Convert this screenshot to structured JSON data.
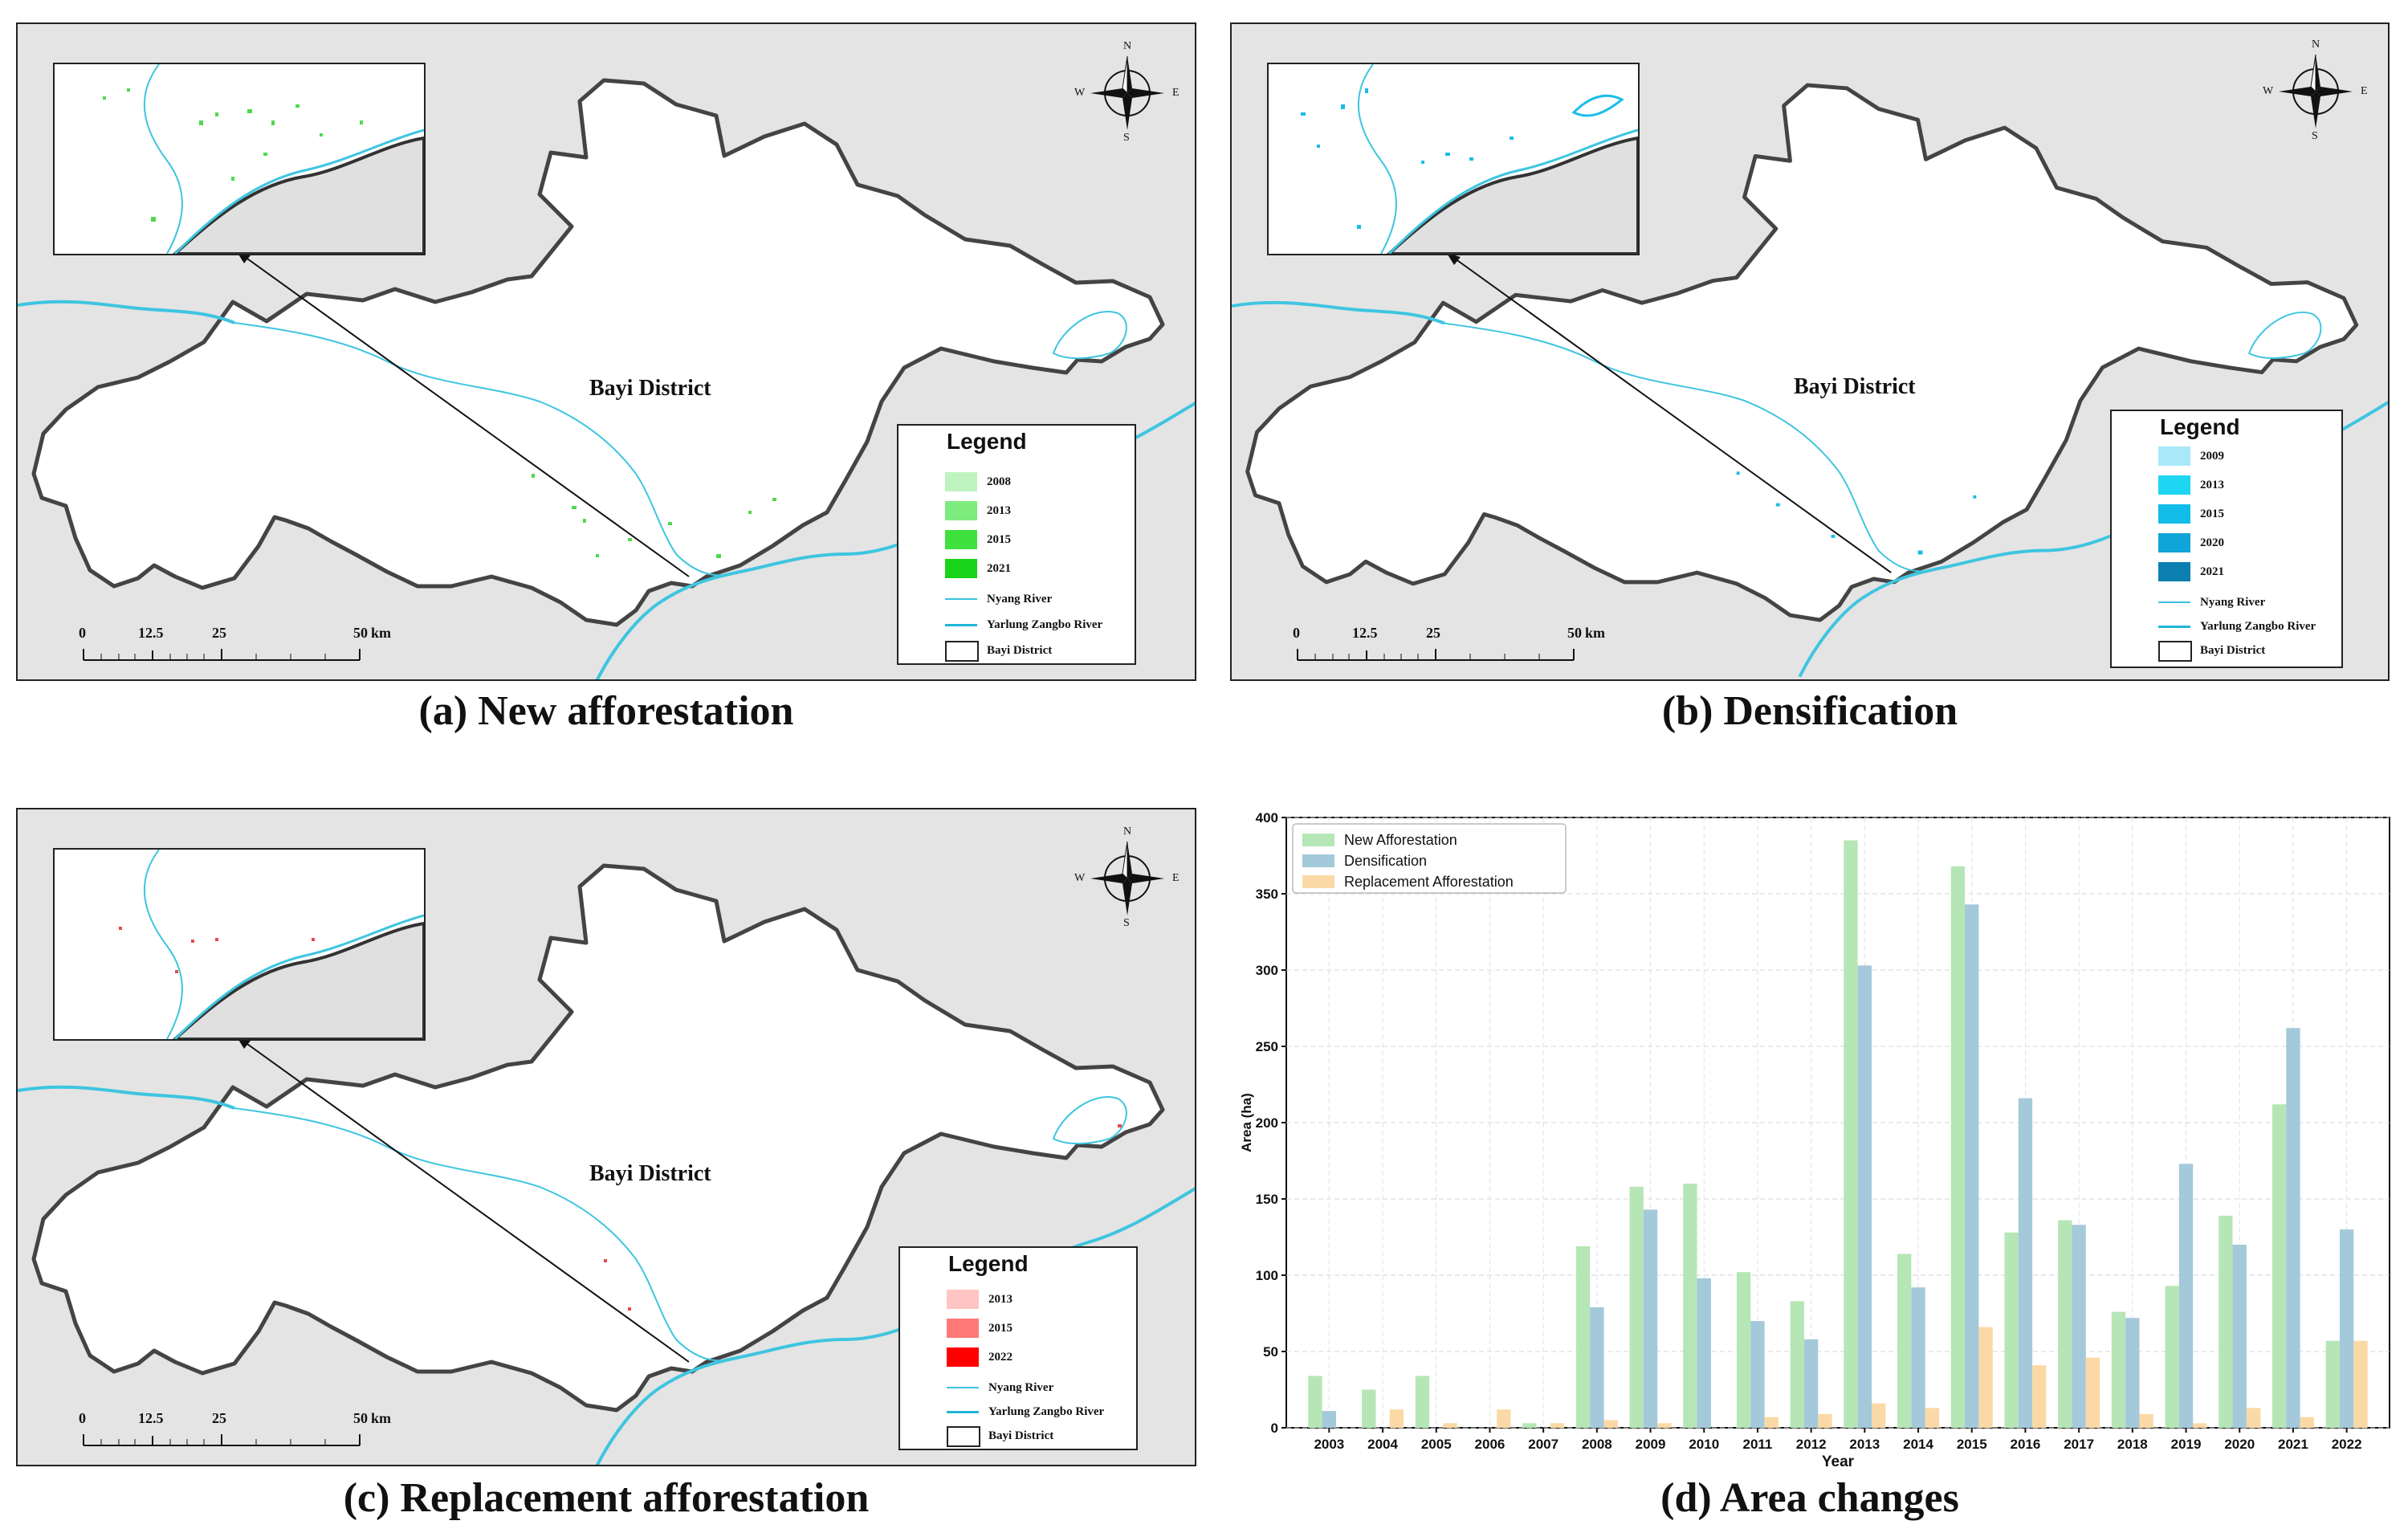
{
  "panels": [
    {
      "id": "a",
      "caption": "(a) New afforestation",
      "district_label": "Bayi District",
      "legend_title": "Legend",
      "legend_items": [
        {
          "label": "2008",
          "color": "#bff3bf"
        },
        {
          "label": "2013",
          "color": "#7deb7d"
        },
        {
          "label": "2015",
          "color": "#3fe13f"
        },
        {
          "label": "2021",
          "color": "#18d418"
        }
      ],
      "pixel_color": "#4fd94f"
    },
    {
      "id": "b",
      "caption": "(b) Densification",
      "district_label": "Bayi District",
      "legend_title": "Legend",
      "legend_items": [
        {
          "label": "2009",
          "color": "#a8e8f8"
        },
        {
          "label": "2013",
          "color": "#1fd6f2"
        },
        {
          "label": "2015",
          "color": "#12bce8"
        },
        {
          "label": "2020",
          "color": "#10a4d8"
        },
        {
          "label": "2021",
          "color": "#0a7fb0"
        }
      ],
      "pixel_color": "#19bde8"
    },
    {
      "id": "c",
      "caption": "(c) Replacement afforestation",
      "district_label": "Bayi District",
      "legend_title": "Legend",
      "legend_items": [
        {
          "label": "2013",
          "color": "#ffc4c4"
        },
        {
          "label": "2015",
          "color": "#ff7878"
        },
        {
          "label": "2022",
          "color": "#ff0000"
        }
      ],
      "pixel_color": "#e84a4a"
    }
  ],
  "legend_common": {
    "nyang": "Nyang River",
    "yarlung": "Yarlung Zangbo River",
    "district": "Bayi District"
  },
  "scalebar": {
    "labels": [
      "0",
      "12.5",
      "25",
      "50",
      "km"
    ]
  },
  "compass": {
    "n": "N",
    "s": "S",
    "e": "E",
    "w": "W"
  },
  "colors": {
    "river": "#3ec5e0",
    "boundary": "#444444",
    "background": "#e4e4e4"
  },
  "chart_caption": "(d) Area changes",
  "chart_data": {
    "type": "bar",
    "xlabel": "Year",
    "ylabel": "Area (ha)",
    "ylim": [
      0,
      400
    ],
    "yticks": [
      0,
      50,
      100,
      150,
      200,
      250,
      300,
      350,
      400
    ],
    "grid": true,
    "legend_position": "top-left",
    "categories": [
      "2003",
      "2004",
      "2005",
      "2006",
      "2007",
      "2008",
      "2009",
      "2010",
      "2011",
      "2012",
      "2013",
      "2014",
      "2015",
      "2016",
      "2017",
      "2018",
      "2019",
      "2020",
      "2021",
      "2022"
    ],
    "series": [
      {
        "name": "New Afforestation",
        "color": "#b6e6b6",
        "values": [
          34,
          25,
          34,
          0,
          3,
          119,
          158,
          160,
          102,
          83,
          385,
          114,
          368,
          128,
          136,
          76,
          93,
          139,
          212,
          57
        ]
      },
      {
        "name": "Densification",
        "color": "#a4c9db",
        "values": [
          11,
          0,
          0,
          0,
          0,
          79,
          143,
          98,
          70,
          58,
          303,
          92,
          343,
          216,
          133,
          72,
          173,
          120,
          262,
          130
        ]
      },
      {
        "name": "Replacement Afforestation",
        "color": "#fbd9a6",
        "values": [
          0,
          12,
          3,
          12,
          3,
          5,
          3,
          0,
          7,
          9,
          16,
          13,
          66,
          41,
          46,
          9,
          3,
          13,
          7,
          57
        ]
      }
    ]
  }
}
